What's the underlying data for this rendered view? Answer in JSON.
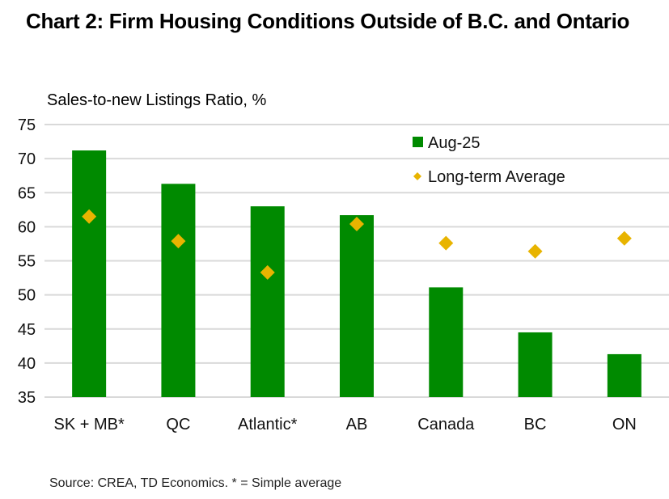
{
  "chart_data": {
    "type": "bar",
    "title": "Chart 2: Firm Housing Conditions Outside of B.C. and Ontario",
    "ylabel": "Sales-to-new Listings Ratio, %",
    "xlabel": "",
    "source": "Source: CREA, TD Economics. * = Simple average",
    "ylim": [
      35,
      75
    ],
    "yticks": [
      35,
      40,
      45,
      50,
      55,
      60,
      65,
      70,
      75
    ],
    "grid": true,
    "legend_position": "top-right",
    "categories": [
      "SK + MB*",
      "QC",
      "Atlantic*",
      "AB",
      "Canada",
      "BC",
      "ON"
    ],
    "series": [
      {
        "name": "Aug-25",
        "kind": "bar",
        "color": "#008A00",
        "values": [
          71.2,
          66.3,
          63.0,
          61.7,
          51.1,
          44.5,
          41.3
        ]
      },
      {
        "name": "Long-term Average",
        "kind": "marker-diamond",
        "color": "#E8B400",
        "values": [
          61.5,
          57.9,
          53.3,
          60.4,
          57.6,
          56.4,
          58.3
        ]
      }
    ]
  }
}
